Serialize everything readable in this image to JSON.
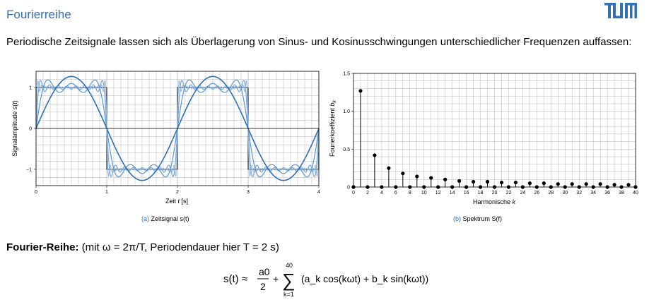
{
  "header": {
    "title": "Fourierreihe",
    "logo_text": "TUM"
  },
  "intro": "Periodische Zeitsignale lassen sich als Überlagerung von Sinus- und Kosinusschwingungen unterschiedlicher Frequenzen auffassen:",
  "colors": {
    "accent": "#3070b3",
    "wave_light": "#8cb4dc",
    "wave_mid": "#5a94cc",
    "grid": "#b4b4b4"
  },
  "chart_data": [
    {
      "type": "line",
      "ylabel": "Signalamplitude s(t)",
      "xlabel": "Zeit t [s]",
      "xlim": [
        0,
        4
      ],
      "ylim": [
        -1.4,
        1.4
      ],
      "x_ticks": [
        "0",
        "1",
        "2",
        "3",
        "4"
      ],
      "y_ticks": [
        "−1",
        "0",
        "1"
      ],
      "grid": true,
      "signal": "square wave, period 2 s, amplitude 1",
      "partial_sums_harmonics": [
        1,
        5,
        15,
        40
      ],
      "caption_label": "(a)",
      "caption_text": "Zeitsignal s(t)"
    },
    {
      "type": "stem",
      "ylabel": "Fourierkoeffizient b_k",
      "xlabel": "Harmonische k",
      "xlim": [
        0,
        40
      ],
      "ylim": [
        0,
        1.5
      ],
      "x_ticks": [
        "0",
        "2",
        "4",
        "6",
        "8",
        "10",
        "12",
        "14",
        "16",
        "18",
        "20",
        "22",
        "24",
        "26",
        "28",
        "30",
        "32",
        "34",
        "36",
        "38",
        "40"
      ],
      "y_ticks": [
        "0",
        "0.5",
        "1.0",
        "1.5"
      ],
      "grid": true,
      "k": [
        0,
        1,
        2,
        3,
        4,
        5,
        6,
        7,
        8,
        9,
        10,
        11,
        12,
        13,
        14,
        15,
        16,
        17,
        18,
        19,
        20,
        21,
        22,
        23,
        24,
        25,
        26,
        27,
        28,
        29,
        30,
        31,
        32,
        33,
        34,
        35,
        36,
        37,
        38,
        39,
        40
      ],
      "b_k": [
        0,
        1.27,
        0,
        0.42,
        0,
        0.25,
        0,
        0.18,
        0,
        0.14,
        0,
        0.12,
        0,
        0.1,
        0,
        0.08,
        0,
        0.07,
        0,
        0.07,
        0,
        0.06,
        0,
        0.06,
        0,
        0.05,
        0,
        0.05,
        0,
        0.04,
        0,
        0.04,
        0,
        0.04,
        0,
        0.04,
        0,
        0.03,
        0,
        0.03,
        0
      ],
      "caption_label": "(b)",
      "caption_text": "Spektrum S(f)"
    }
  ],
  "series_section": {
    "heading_bold": "Fourier-Reihe:",
    "heading_rest": "(mit ω = 2π/T, Periodendauer hier T = 2 s)"
  },
  "formula": {
    "lhs": "s(t) ≈",
    "numerator": "a0",
    "denominator": "2",
    "plus": "+",
    "sum_upper": "40",
    "sum_lower": "k=1",
    "body": "(a_k cos(kωt) + b_k sin(kωt))"
  }
}
